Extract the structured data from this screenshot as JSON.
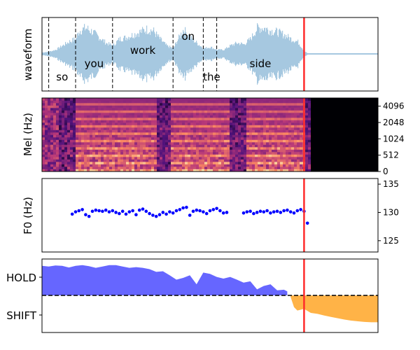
{
  "chart_data": [
    {
      "panel": "waveform",
      "type": "area",
      "ylabel": "waveform",
      "color": "#a6c8e0",
      "time_range": [
        0,
        1
      ],
      "x_marker": 0.78,
      "word_boundaries": [
        0.02,
        0.1,
        0.21,
        0.39,
        0.48,
        0.52
      ],
      "words": [
        {
          "text": "so",
          "t": 0.06,
          "level": "low"
        },
        {
          "text": "you",
          "t": 0.155,
          "level": "mid"
        },
        {
          "text": "work",
          "t": 0.3,
          "level": "high"
        },
        {
          "text": "on",
          "t": 0.435,
          "level": "top"
        },
        {
          "text": "the",
          "t": 0.505,
          "level": "low"
        },
        {
          "text": "side",
          "t": 0.65,
          "level": "mid"
        }
      ],
      "envelope": {
        "t": [
          0.0,
          0.02,
          0.04,
          0.06,
          0.08,
          0.1,
          0.11,
          0.13,
          0.15,
          0.17,
          0.19,
          0.21,
          0.23,
          0.25,
          0.27,
          0.29,
          0.31,
          0.33,
          0.35,
          0.37,
          0.39,
          0.4,
          0.42,
          0.44,
          0.46,
          0.48,
          0.5,
          0.52,
          0.54,
          0.56,
          0.58,
          0.6,
          0.62,
          0.64,
          0.66,
          0.68,
          0.7,
          0.72,
          0.74,
          0.76,
          0.78,
          0.79,
          0.8,
          1.0
        ],
        "a": [
          0.05,
          0.08,
          0.15,
          0.3,
          0.45,
          0.55,
          0.85,
          0.95,
          0.8,
          0.6,
          0.4,
          0.3,
          0.55,
          0.6,
          0.7,
          0.8,
          0.9,
          0.85,
          0.55,
          0.3,
          0.2,
          0.45,
          0.9,
          0.6,
          0.4,
          0.2,
          0.25,
          0.15,
          0.15,
          0.3,
          0.4,
          0.35,
          0.55,
          0.95,
          0.95,
          0.85,
          0.8,
          0.7,
          0.55,
          0.45,
          0.1,
          0.02,
          0.02,
          0.02
        ]
      }
    },
    {
      "panel": "mel",
      "type": "heatmap",
      "ylabel": "Mel (Hz)",
      "y_ticks": [
        "0",
        "512",
        "1024",
        "2048",
        "4096"
      ],
      "colormap": "magma",
      "time_range": [
        0,
        1
      ],
      "x_marker": 0.78,
      "voiced_segments": [
        [
          0.1,
          0.34
        ],
        [
          0.38,
          0.56
        ],
        [
          0.61,
          0.78
        ]
      ],
      "silence_after": 0.8
    },
    {
      "panel": "f0",
      "type": "scatter",
      "ylabel": "F0 (Hz)",
      "y_ticks": [
        "125",
        "130",
        "135"
      ],
      "ylim": [
        123,
        136
      ],
      "color": "#0000ff",
      "time_range": [
        0,
        1
      ],
      "x_marker": 0.78,
      "x": [
        0.09,
        0.1,
        0.11,
        0.12,
        0.13,
        0.14,
        0.15,
        0.16,
        0.17,
        0.18,
        0.19,
        0.2,
        0.21,
        0.22,
        0.23,
        0.24,
        0.25,
        0.26,
        0.27,
        0.28,
        0.29,
        0.3,
        0.31,
        0.32,
        0.33,
        0.34,
        0.35,
        0.36,
        0.37,
        0.38,
        0.39,
        0.4,
        0.41,
        0.42,
        0.43,
        0.44,
        0.45,
        0.46,
        0.47,
        0.48,
        0.49,
        0.5,
        0.51,
        0.52,
        0.53,
        0.54,
        0.55,
        0.6,
        0.61,
        0.62,
        0.63,
        0.64,
        0.65,
        0.66,
        0.67,
        0.68,
        0.69,
        0.7,
        0.71,
        0.72,
        0.73,
        0.74,
        0.75,
        0.76,
        0.77,
        0.78,
        0.79
      ],
      "y": [
        129.7,
        130.1,
        130.3,
        130.5,
        129.6,
        129.3,
        130.2,
        130.4,
        130.3,
        130.2,
        130.4,
        130.1,
        130.3,
        130.0,
        129.8,
        130.2,
        129.7,
        130.1,
        130.3,
        129.6,
        130.4,
        130.6,
        130.2,
        129.8,
        129.5,
        129.3,
        129.6,
        130.0,
        129.7,
        130.1,
        129.9,
        130.3,
        130.5,
        130.8,
        130.9,
        129.5,
        130.2,
        130.4,
        130.3,
        130.1,
        129.8,
        130.3,
        130.5,
        130.7,
        130.3,
        129.9,
        130.0,
        129.9,
        130.1,
        130.2,
        129.8,
        130.0,
        130.2,
        130.1,
        130.3,
        129.9,
        130.1,
        130.2,
        130.0,
        130.3,
        130.4,
        130.1,
        129.9,
        130.3,
        130.5,
        130.2,
        128.1
      ]
    },
    {
      "panel": "turn",
      "type": "area",
      "y_categories": [
        "HOLD",
        "SHIFT"
      ],
      "time_range": [
        0,
        1
      ],
      "x_marker": 0.78,
      "baseline_style": "dashed",
      "hold": {
        "color": "#6666ff",
        "t": [
          0.0,
          0.02,
          0.04,
          0.06,
          0.08,
          0.1,
          0.12,
          0.14,
          0.16,
          0.18,
          0.2,
          0.22,
          0.24,
          0.26,
          0.28,
          0.3,
          0.32,
          0.34,
          0.36,
          0.38,
          0.4,
          0.42,
          0.44,
          0.46,
          0.48,
          0.5,
          0.52,
          0.54,
          0.56,
          0.58,
          0.6,
          0.62,
          0.64,
          0.66,
          0.68,
          0.7,
          0.72,
          0.73
        ],
        "v": [
          0.88,
          0.86,
          0.89,
          0.88,
          0.83,
          0.88,
          0.9,
          0.87,
          0.82,
          0.86,
          0.9,
          0.9,
          0.86,
          0.82,
          0.84,
          0.82,
          0.78,
          0.7,
          0.72,
          0.6,
          0.47,
          0.52,
          0.6,
          0.33,
          0.68,
          0.64,
          0.55,
          0.5,
          0.55,
          0.47,
          0.38,
          0.42,
          0.18,
          0.28,
          0.33,
          0.15,
          0.17,
          0.12
        ]
      },
      "shift": {
        "color": "#ffb347",
        "t": [
          0.74,
          0.75,
          0.76,
          0.78,
          0.8,
          0.82,
          0.84,
          0.86,
          0.88,
          0.9,
          0.92,
          0.94,
          0.96,
          0.98,
          1.0
        ],
        "v": [
          -0.05,
          -0.35,
          -0.45,
          -0.4,
          -0.52,
          -0.55,
          -0.6,
          -0.64,
          -0.68,
          -0.72,
          -0.75,
          -0.77,
          -0.79,
          -0.8,
          -0.8
        ]
      }
    }
  ]
}
